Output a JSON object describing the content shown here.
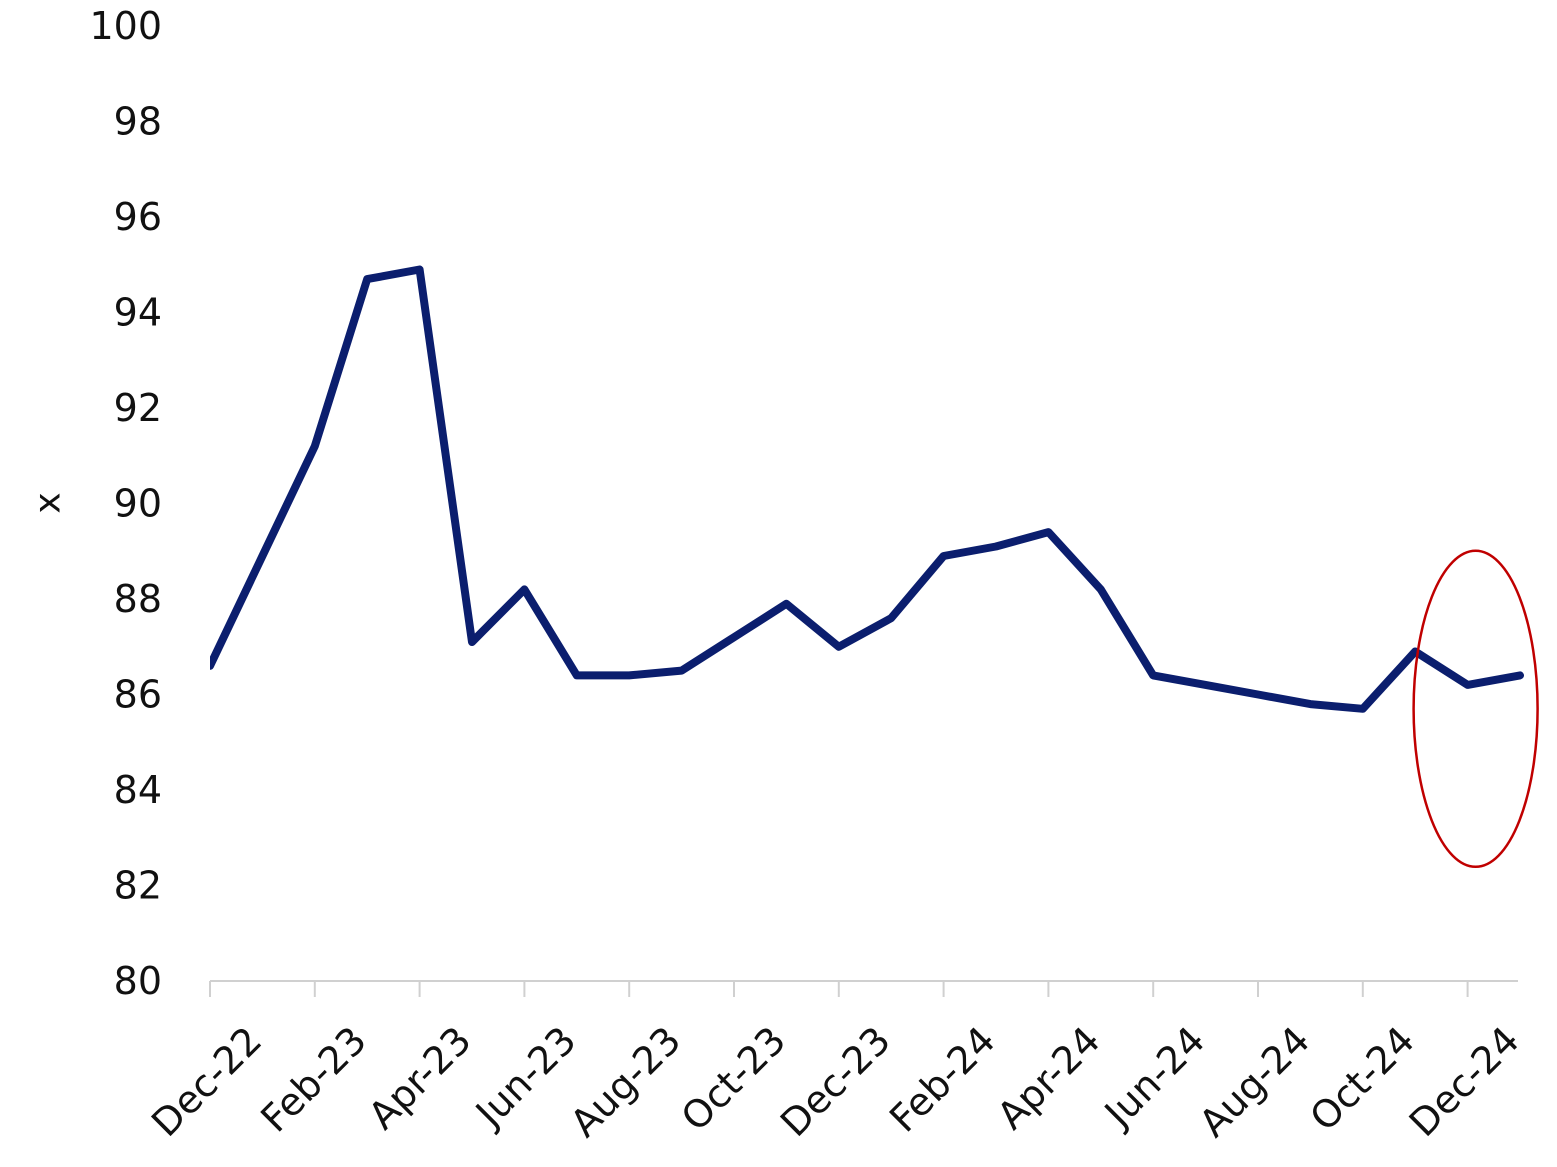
{
  "chart_data": {
    "type": "line",
    "title": "",
    "xlabel": "",
    "ylabel": "x",
    "ylim": [
      80,
      100
    ],
    "yticks": [
      80,
      82,
      84,
      86,
      88,
      90,
      92,
      94,
      96,
      98,
      100
    ],
    "x_tick_labels": [
      "Dec-22",
      "Feb-23",
      "Apr-23",
      "Jun-23",
      "Aug-23",
      "Oct-23",
      "Dec-23",
      "Feb-24",
      "Apr-24",
      "Jun-24",
      "Aug-24",
      "Oct-24",
      "Dec-24"
    ],
    "grid": false,
    "legend": "none",
    "series": [
      {
        "color": "#0b1e6e",
        "points": [
          {
            "x": "Dec-22",
            "y": 86.6
          },
          {
            "x": "Jan-23",
            "y": 88.9
          },
          {
            "x": "Feb-23",
            "y": 91.2
          },
          {
            "x": "Mar-23",
            "y": 94.7
          },
          {
            "x": "Apr-23",
            "y": 94.9
          },
          {
            "x": "May-23",
            "y": 87.1
          },
          {
            "x": "Jun-23",
            "y": 88.2
          },
          {
            "x": "Jul-23",
            "y": 86.4
          },
          {
            "x": "Aug-23",
            "y": 86.4
          },
          {
            "x": "Sep-23",
            "y": 86.5
          },
          {
            "x": "Oct-23",
            "y": 87.2
          },
          {
            "x": "Nov-23",
            "y": 87.9
          },
          {
            "x": "Dec-23",
            "y": 87.0
          },
          {
            "x": "Jan-24",
            "y": 87.6
          },
          {
            "x": "Feb-24",
            "y": 88.9
          },
          {
            "x": "Mar-24",
            "y": 89.1
          },
          {
            "x": "Apr-24",
            "y": 89.4
          },
          {
            "x": "May-24",
            "y": 88.2
          },
          {
            "x": "Jun-24",
            "y": 86.4
          },
          {
            "x": "Jul-24",
            "y": 86.2
          },
          {
            "x": "Aug-24",
            "y": 86.0
          },
          {
            "x": "Sep-24",
            "y": 85.8
          },
          {
            "x": "Oct-24",
            "y": 85.7
          },
          {
            "x": "Nov-24",
            "y": 86.9
          },
          {
            "x": "Dec-24",
            "y": 86.2
          },
          {
            "x": "Jan-25",
            "y": 86.4
          }
        ]
      }
    ],
    "annotation": {
      "shape": "ellipse",
      "color": "#c00000",
      "around": "latest readings"
    }
  }
}
